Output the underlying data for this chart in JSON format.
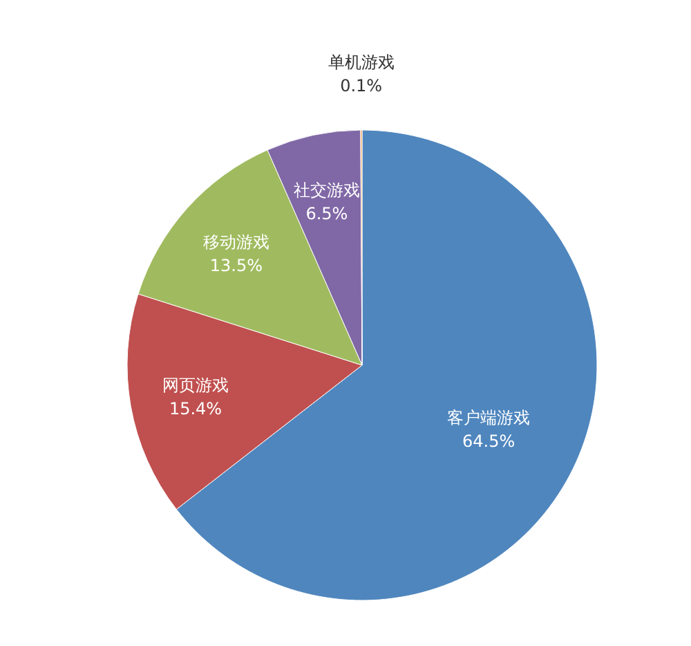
{
  "chart_data": {
    "type": "pie",
    "categories": [
      "客户端游戏",
      "网页游戏",
      "移动游戏",
      "社交游戏",
      "单机游戏"
    ],
    "values": [
      64.5,
      15.4,
      13.5,
      6.5,
      0.1
    ],
    "value_labels": [
      "64.5%",
      "15.4%",
      "13.5%",
      "6.5%",
      "0.1%"
    ],
    "colors": [
      "#4f86be",
      "#c0504f",
      "#a0bb5f",
      "#8068a6",
      "#f79646"
    ]
  }
}
